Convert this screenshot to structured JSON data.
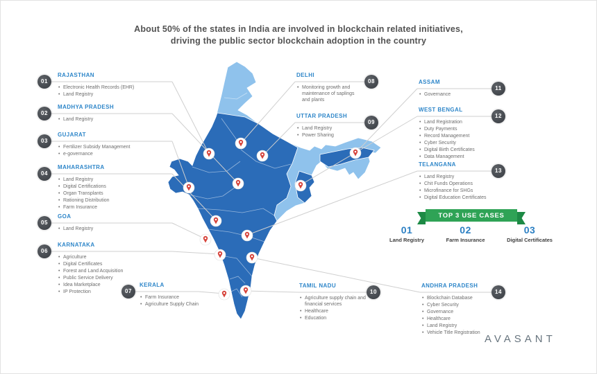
{
  "title": {
    "line1": "About 50% of the states in India are involved in blockchain related initiatives,",
    "line2": "driving the public sector blockchain adoption in the country"
  },
  "states": [
    {
      "num": "01",
      "name": "RAJASTHAN",
      "items": [
        "Electronic Health Records (EHR)",
        "Land Registry"
      ]
    },
    {
      "num": "02",
      "name": "MADHYA PRADESH",
      "items": [
        "Land Registry"
      ]
    },
    {
      "num": "03",
      "name": "GUJARAT",
      "items": [
        "Fertilizer Subsidy Management",
        "e-governance"
      ]
    },
    {
      "num": "04",
      "name": "MAHARASHTRA",
      "items": [
        "Land Registry",
        "Digital Certifications",
        "Organ Transplants",
        "Rationing Distribution",
        "Farm Insurance"
      ]
    },
    {
      "num": "05",
      "name": "GOA",
      "items": [
        "Land Registry"
      ]
    },
    {
      "num": "06",
      "name": "KARNATAKA",
      "items": [
        "Agriculture",
        "Digital Certificates",
        "Forest and Land Acquisition",
        "Public Service Delivery",
        "Idea Marketplace",
        "IP Protection"
      ]
    },
    {
      "num": "07",
      "name": "KERALA",
      "items": [
        "Farm Insurance",
        "Agriculture Supply Chain"
      ]
    },
    {
      "num": "08",
      "name": "DELHI",
      "items": [
        "Monitoring growth and maintenance of saplings and plants"
      ]
    },
    {
      "num": "09",
      "name": "UTTAR PRADESH",
      "items": [
        "Land Registry",
        "Power Sharing"
      ]
    },
    {
      "num": "10",
      "name": "TAMIL NADU",
      "items": [
        "Agriculture supply chain and financial services",
        "Healthcare",
        "Education"
      ]
    },
    {
      "num": "11",
      "name": "ASSAM",
      "items": [
        "Governance"
      ]
    },
    {
      "num": "12",
      "name": "WEST BENGAL",
      "items": [
        "Land Registration",
        "Duty Payments",
        "Record Management",
        "Cyber Security",
        "Digital Birth Certificates",
        "Data Management"
      ]
    },
    {
      "num": "13",
      "name": "TELANGANA",
      "items": [
        "Land Registry",
        "Chit Funds Operations",
        "Microfinance for SHGs",
        "Digital Education Certificates"
      ]
    },
    {
      "num": "14",
      "name": "ANDHRA PRADESH",
      "items": [
        "Blockchain Database",
        "Cyber Security",
        "Governance",
        "Healthcare",
        "Land Registry",
        "Vehicle Title Registration"
      ]
    }
  ],
  "top_use_cases": {
    "banner": "TOP 3 USE CASES",
    "items": [
      {
        "rank": "01",
        "label": "Land Registry"
      },
      {
        "rank": "02",
        "label": "Farm Insurance"
      },
      {
        "rank": "03",
        "label": "Digital Certificates"
      }
    ]
  },
  "logo": {
    "text": "AVASANT"
  },
  "icons": {
    "map_pin": "location-pin"
  },
  "colors": {
    "heading_blue": "#2e86c9",
    "map_dark_blue": "#2b6cb8",
    "map_light_blue": "#8fc2ec",
    "pin_red": "#d6433b",
    "banner_green": "#2fa356",
    "badge_dark": "#41454b"
  }
}
